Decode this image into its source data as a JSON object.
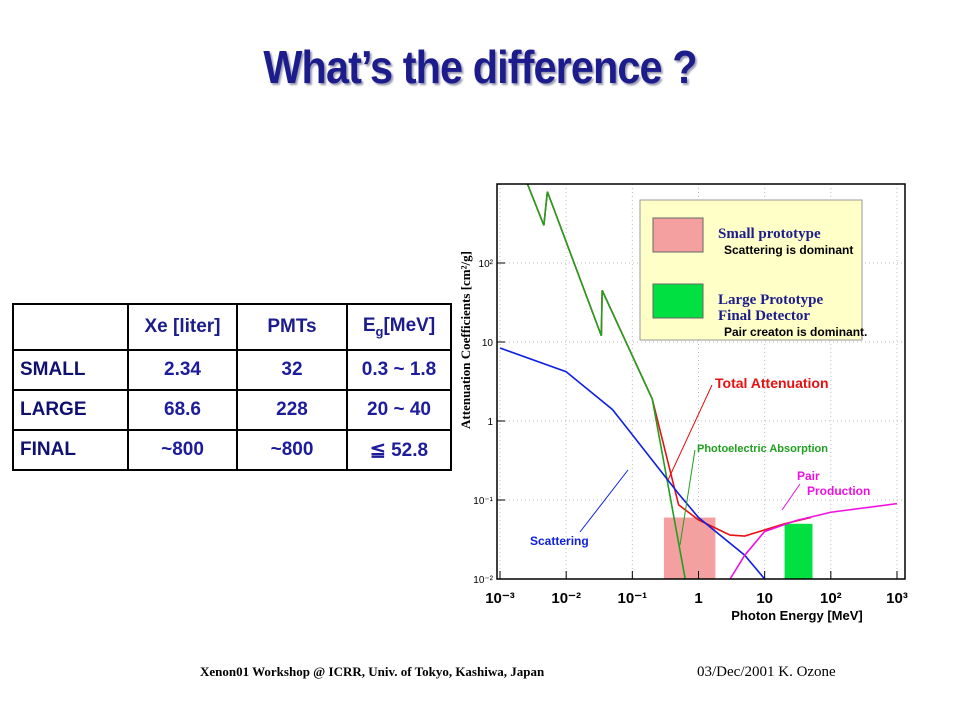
{
  "title": "What’s the difference ?",
  "table": {
    "header": [
      "Xe [liter]",
      "PMTs",
      {
        "main": "E",
        "sub": "g",
        "rest": "[MeV]"
      }
    ],
    "rows": [
      [
        "SMALL",
        "2.34",
        "32",
        "0.3 ~ 1.8"
      ],
      [
        "LARGE",
        "68.6",
        "228",
        "20 ~ 40"
      ],
      [
        "FINAL",
        "~800",
        "~800",
        "≦ 52.8"
      ]
    ]
  },
  "figure": {
    "xlabel": "Photon Energy [MeV]",
    "ylabel": "Attenuation Coefficients [cm²/g]",
    "log": true,
    "grid": true,
    "xlim": [
      0.001,
      1000
    ],
    "ylim": [
      0.01,
      1000
    ],
    "xticks": [
      {
        "value": 0.001,
        "label": "10⁻³"
      },
      {
        "value": 0.01,
        "label": "10⁻²"
      },
      {
        "value": 0.1,
        "label": "10⁻¹"
      },
      1,
      10,
      {
        "value": 100,
        "label": "10²"
      },
      {
        "value": 1000,
        "label": "10³"
      }
    ],
    "yticks": [
      {
        "value": 0.01,
        "label": "10⁻²"
      },
      {
        "value": 0.1,
        "label": "10⁻¹"
      },
      1,
      10,
      {
        "value": 100,
        "label": "10²"
      }
    ],
    "bands": [
      {
        "x": [
          0.3,
          1.8
        ],
        "top": 0.06,
        "color": "#f4a0a0"
      },
      {
        "x": [
          20,
          52.8
        ],
        "top": 0.05,
        "color": "#00e040"
      }
    ],
    "series": [
      {
        "name": "Total Attenuation",
        "color": "#e81010",
        "x": [
          0.0026,
          0.0046,
          0.0052,
          0.034,
          0.035,
          0.2,
          0.5,
          1,
          3,
          5,
          20,
          50
        ],
        "values": [
          1000,
          300,
          800,
          12,
          45,
          1.9,
          0.087,
          0.056,
          0.036,
          0.035,
          0.05,
          0.06
        ]
      },
      {
        "name": "Photoelectric Absorption",
        "color": "#20a020",
        "x": [
          0.0026,
          0.0046,
          0.0052,
          0.034,
          0.035,
          0.2,
          0.63
        ],
        "values": [
          1000,
          300,
          800,
          12,
          45,
          1.9,
          0.01
        ]
      },
      {
        "name": "Scattering",
        "color": "#1020e0",
        "x": [
          0.001,
          0.01,
          0.05,
          0.1,
          0.5,
          1,
          5,
          10
        ],
        "values": [
          8.4,
          4.2,
          1.4,
          0.67,
          0.12,
          0.06,
          0.02,
          0.01
        ]
      },
      {
        "name": "Pair Production",
        "color": "#f010e0",
        "x": [
          3,
          5,
          10,
          30,
          100,
          1000
        ],
        "values": [
          0.01,
          0.02,
          0.04,
          0.055,
          0.07,
          0.09
        ]
      }
    ],
    "annotations": {
      "total": "Total Attenuation",
      "photo": "Photoelectric Absorption",
      "pair1": "Pair",
      "pair2": "Production",
      "scatter": "Scattering"
    },
    "legend": [
      {
        "title": "Small prototype",
        "lines": [
          "Scattering is dominant"
        ],
        "color": "#f4a0a0"
      },
      {
        "title": "Large Prototype",
        "lines": [
          "Final Detector",
          "Pair creaton is dominant."
        ],
        "color": "#00e040"
      }
    ]
  },
  "footer": {
    "left": "Xenon01 Workshop @ ICRR, Univ. of Tokyo, Kashiwa, Japan",
    "right": "03/Dec/2001  K. Ozone"
  }
}
